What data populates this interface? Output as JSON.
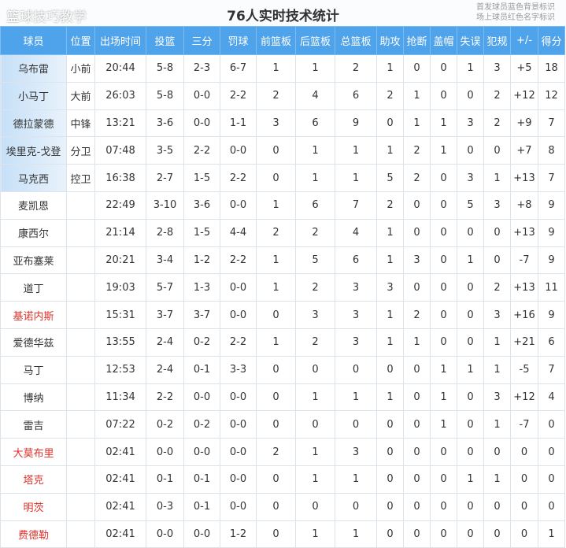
{
  "title": "76人实时技术统计",
  "legend": [
    "首发球员蓝色背景标识",
    "场上球员红色名字标识"
  ],
  "watermark": "篮球技巧教学",
  "colors": {
    "header": "#4fa3ea",
    "starter_bg": "#c7e0f7",
    "on_court_name": "#e0312a"
  },
  "columns": [
    "球员",
    "位置",
    "出场时间",
    "投篮",
    "三分",
    "罚球",
    "前篮板",
    "后篮板",
    "总篮板",
    "助攻",
    "抢断",
    "盖帽",
    "失误",
    "犯规",
    "+/-",
    "得分"
  ],
  "rows": [
    {
      "starter": true,
      "on_court": false,
      "cells": [
        "乌布雷",
        "小前",
        "20:44",
        "5-8",
        "2-3",
        "6-7",
        "1",
        "1",
        "2",
        "1",
        "0",
        "0",
        "1",
        "3",
        "+5",
        "18"
      ]
    },
    {
      "starter": true,
      "on_court": false,
      "cells": [
        "小马丁",
        "大前",
        "26:03",
        "5-8",
        "0-0",
        "2-2",
        "2",
        "4",
        "6",
        "2",
        "1",
        "0",
        "0",
        "2",
        "+12",
        "12"
      ]
    },
    {
      "starter": true,
      "on_court": false,
      "cells": [
        "德拉蒙德",
        "中锋",
        "13:21",
        "3-6",
        "0-0",
        "1-1",
        "3",
        "6",
        "9",
        "0",
        "1",
        "1",
        "3",
        "2",
        "+9",
        "7"
      ]
    },
    {
      "starter": true,
      "on_court": false,
      "cells": [
        "埃里克-戈登",
        "分卫",
        "07:48",
        "3-5",
        "2-2",
        "0-0",
        "0",
        "1",
        "1",
        "1",
        "2",
        "1",
        "0",
        "0",
        "+7",
        "8"
      ]
    },
    {
      "starter": true,
      "on_court": false,
      "cells": [
        "马克西",
        "控卫",
        "16:38",
        "2-7",
        "1-5",
        "2-2",
        "0",
        "1",
        "1",
        "5",
        "2",
        "0",
        "3",
        "1",
        "+13",
        "7"
      ]
    },
    {
      "starter": false,
      "on_court": false,
      "cells": [
        "麦凯恩",
        "",
        "22:49",
        "3-10",
        "3-6",
        "0-0",
        "1",
        "6",
        "7",
        "2",
        "0",
        "0",
        "5",
        "3",
        "+8",
        "9"
      ]
    },
    {
      "starter": false,
      "on_court": false,
      "cells": [
        "康西尔",
        "",
        "21:14",
        "2-8",
        "1-5",
        "4-4",
        "2",
        "2",
        "4",
        "1",
        "0",
        "0",
        "0",
        "0",
        "+13",
        "9"
      ]
    },
    {
      "starter": false,
      "on_court": false,
      "cells": [
        "亚布塞莱",
        "",
        "20:21",
        "3-4",
        "1-2",
        "2-2",
        "1",
        "5",
        "6",
        "1",
        "3",
        "0",
        "1",
        "0",
        "-7",
        "9"
      ]
    },
    {
      "starter": false,
      "on_court": false,
      "cells": [
        "道丁",
        "",
        "19:03",
        "5-7",
        "1-3",
        "0-0",
        "1",
        "2",
        "3",
        "3",
        "0",
        "0",
        "0",
        "2",
        "+13",
        "11"
      ]
    },
    {
      "starter": false,
      "on_court": true,
      "cells": [
        "基诺内斯",
        "",
        "15:31",
        "3-7",
        "3-7",
        "0-0",
        "0",
        "3",
        "3",
        "1",
        "2",
        "0",
        "0",
        "3",
        "+16",
        "9"
      ]
    },
    {
      "starter": false,
      "on_court": false,
      "cells": [
        "爱德华兹",
        "",
        "13:55",
        "2-4",
        "0-2",
        "2-2",
        "1",
        "2",
        "3",
        "1",
        "1",
        "0",
        "0",
        "1",
        "+21",
        "6"
      ]
    },
    {
      "starter": false,
      "on_court": false,
      "cells": [
        "马丁",
        "",
        "12:53",
        "2-4",
        "0-1",
        "3-3",
        "0",
        "0",
        "0",
        "0",
        "0",
        "1",
        "1",
        "1",
        "-5",
        "7"
      ]
    },
    {
      "starter": false,
      "on_court": false,
      "cells": [
        "博纳",
        "",
        "11:34",
        "2-2",
        "0-0",
        "0-0",
        "0",
        "1",
        "1",
        "1",
        "0",
        "1",
        "0",
        "3",
        "+12",
        "4"
      ]
    },
    {
      "starter": false,
      "on_court": false,
      "cells": [
        "雷吉",
        "",
        "07:22",
        "0-2",
        "0-2",
        "0-0",
        "0",
        "0",
        "0",
        "0",
        "0",
        "1",
        "0",
        "1",
        "-7",
        "0"
      ]
    },
    {
      "starter": false,
      "on_court": true,
      "cells": [
        "大莫布里",
        "",
        "02:41",
        "0-0",
        "0-0",
        "0-0",
        "2",
        "1",
        "3",
        "0",
        "0",
        "0",
        "0",
        "0",
        "0",
        "0"
      ]
    },
    {
      "starter": false,
      "on_court": true,
      "cells": [
        "塔克",
        "",
        "02:41",
        "0-1",
        "0-1",
        "0-0",
        "0",
        "1",
        "1",
        "0",
        "0",
        "0",
        "1",
        "1",
        "0",
        "0"
      ]
    },
    {
      "starter": false,
      "on_court": true,
      "cells": [
        "明茨",
        "",
        "02:41",
        "0-3",
        "0-1",
        "0-0",
        "0",
        "0",
        "0",
        "0",
        "0",
        "0",
        "0",
        "0",
        "0",
        "0"
      ]
    },
    {
      "starter": false,
      "on_court": true,
      "cells": [
        "费德勒",
        "",
        "02:41",
        "0-0",
        "0-0",
        "1-2",
        "0",
        "1",
        "1",
        "0",
        "0",
        "0",
        "0",
        "0",
        "0",
        "1"
      ]
    }
  ]
}
